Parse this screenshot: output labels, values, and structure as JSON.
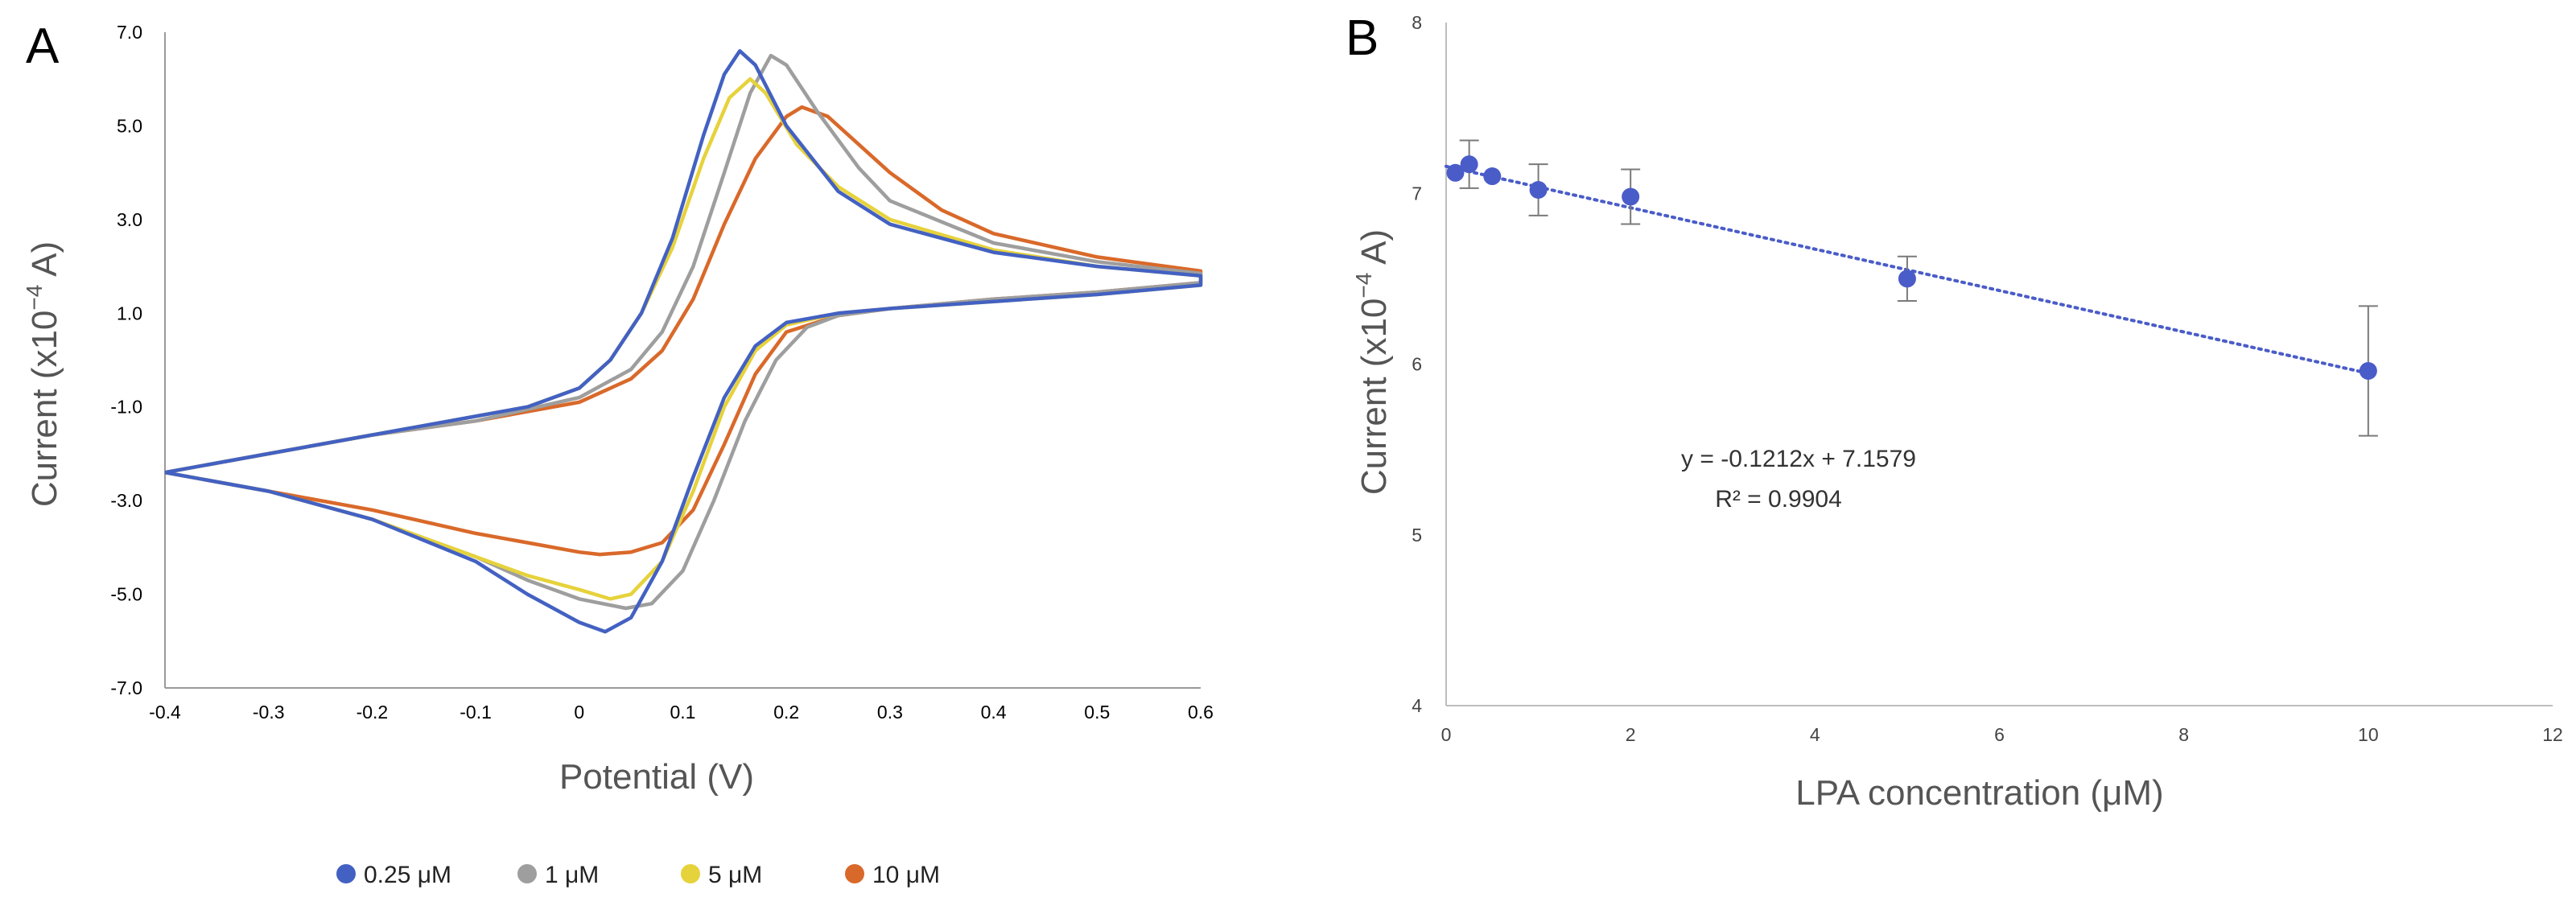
{
  "panels": {
    "A": {
      "letter": "A"
    },
    "B": {
      "letter": "B"
    }
  },
  "chart_data": [
    {
      "type": "line",
      "panel": "A",
      "title": "",
      "xlabel": "Potential (V)",
      "ylabel_main": "Current (x10",
      "ylabel_exp": "−4",
      "ylabel_unit": " A)",
      "xlim": [
        -0.4,
        0.6
      ],
      "ylim": [
        -7.0,
        7.0
      ],
      "x_ticks": [
        "-0.4",
        "-0.3",
        "-0.2",
        "-0.1",
        "0",
        "0.1",
        "0.2",
        "0.3",
        "0.4",
        "0.5",
        "0.6"
      ],
      "y_ticks": [
        "7.0",
        "5.0",
        "3.0",
        "1.0",
        "-1.0",
        "-3.0",
        "-5.0",
        "-7.0"
      ],
      "grid": false,
      "legend_position": "bottom",
      "series": [
        {
          "name": "0.25 μM",
          "color": "#4361c2",
          "forward": [
            [
              -0.4,
              -2.4
            ],
            [
              -0.3,
              -2.0
            ],
            [
              -0.2,
              -1.6
            ],
            [
              -0.1,
              -1.2
            ],
            [
              -0.05,
              -1.0
            ],
            [
              0.0,
              -0.6
            ],
            [
              0.03,
              0.0
            ],
            [
              0.06,
              1.0
            ],
            [
              0.09,
              2.6
            ],
            [
              0.12,
              4.8
            ],
            [
              0.14,
              6.1
            ],
            [
              0.155,
              6.6
            ],
            [
              0.17,
              6.3
            ],
            [
              0.2,
              5.0
            ],
            [
              0.25,
              3.6
            ],
            [
              0.3,
              2.9
            ],
            [
              0.4,
              2.3
            ],
            [
              0.5,
              2.0
            ],
            [
              0.6,
              1.8
            ]
          ],
          "reverse": [
            [
              0.6,
              1.6
            ],
            [
              0.5,
              1.4
            ],
            [
              0.4,
              1.25
            ],
            [
              0.3,
              1.1
            ],
            [
              0.25,
              1.0
            ],
            [
              0.2,
              0.8
            ],
            [
              0.17,
              0.3
            ],
            [
              0.14,
              -0.8
            ],
            [
              0.11,
              -2.5
            ],
            [
              0.08,
              -4.3
            ],
            [
              0.05,
              -5.5
            ],
            [
              0.025,
              -5.8
            ],
            [
              0.0,
              -5.6
            ],
            [
              -0.05,
              -5.0
            ],
            [
              -0.1,
              -4.3
            ],
            [
              -0.2,
              -3.4
            ],
            [
              -0.3,
              -2.8
            ],
            [
              -0.4,
              -2.4
            ]
          ]
        },
        {
          "name": "1 μM",
          "color": "#9e9e9e",
          "forward": [
            [
              -0.4,
              -2.4
            ],
            [
              -0.3,
              -2.0
            ],
            [
              -0.2,
              -1.6
            ],
            [
              -0.1,
              -1.3
            ],
            [
              0.0,
              -0.8
            ],
            [
              0.05,
              -0.2
            ],
            [
              0.08,
              0.6
            ],
            [
              0.11,
              2.0
            ],
            [
              0.14,
              4.0
            ],
            [
              0.165,
              5.7
            ],
            [
              0.185,
              6.5
            ],
            [
              0.2,
              6.3
            ],
            [
              0.23,
              5.3
            ],
            [
              0.27,
              4.1
            ],
            [
              0.3,
              3.4
            ],
            [
              0.4,
              2.5
            ],
            [
              0.5,
              2.1
            ],
            [
              0.6,
              1.85
            ]
          ],
          "reverse": [
            [
              0.6,
              1.65
            ],
            [
              0.5,
              1.45
            ],
            [
              0.4,
              1.3
            ],
            [
              0.3,
              1.1
            ],
            [
              0.25,
              0.95
            ],
            [
              0.22,
              0.7
            ],
            [
              0.19,
              0.0
            ],
            [
              0.16,
              -1.3
            ],
            [
              0.13,
              -3.0
            ],
            [
              0.1,
              -4.5
            ],
            [
              0.07,
              -5.2
            ],
            [
              0.045,
              -5.3
            ],
            [
              0.0,
              -5.1
            ],
            [
              -0.05,
              -4.7
            ],
            [
              -0.1,
              -4.2
            ],
            [
              -0.2,
              -3.4
            ],
            [
              -0.3,
              -2.8
            ],
            [
              -0.4,
              -2.4
            ]
          ]
        },
        {
          "name": "5 μM",
          "color": "#e6d23b",
          "forward": [
            [
              -0.4,
              -2.4
            ],
            [
              -0.3,
              -2.0
            ],
            [
              -0.2,
              -1.6
            ],
            [
              -0.1,
              -1.2
            ],
            [
              -0.05,
              -1.0
            ],
            [
              0.0,
              -0.6
            ],
            [
              0.03,
              0.0
            ],
            [
              0.06,
              1.0
            ],
            [
              0.09,
              2.4
            ],
            [
              0.12,
              4.3
            ],
            [
              0.145,
              5.6
            ],
            [
              0.165,
              6.0
            ],
            [
              0.18,
              5.7
            ],
            [
              0.21,
              4.6
            ],
            [
              0.25,
              3.7
            ],
            [
              0.3,
              3.0
            ],
            [
              0.4,
              2.35
            ],
            [
              0.5,
              2.0
            ],
            [
              0.6,
              1.8
            ]
          ],
          "reverse": [
            [
              0.6,
              1.6
            ],
            [
              0.5,
              1.4
            ],
            [
              0.4,
              1.25
            ],
            [
              0.3,
              1.1
            ],
            [
              0.25,
              1.0
            ],
            [
              0.2,
              0.75
            ],
            [
              0.17,
              0.2
            ],
            [
              0.14,
              -1.0
            ],
            [
              0.11,
              -2.8
            ],
            [
              0.08,
              -4.3
            ],
            [
              0.05,
              -5.0
            ],
            [
              0.03,
              -5.1
            ],
            [
              0.0,
              -4.9
            ],
            [
              -0.05,
              -4.6
            ],
            [
              -0.1,
              -4.2
            ],
            [
              -0.2,
              -3.4
            ],
            [
              -0.3,
              -2.8
            ],
            [
              -0.4,
              -2.4
            ]
          ]
        },
        {
          "name": "10 μM",
          "color": "#d9692a",
          "forward": [
            [
              -0.4,
              -2.4
            ],
            [
              -0.3,
              -2.0
            ],
            [
              -0.2,
              -1.6
            ],
            [
              -0.1,
              -1.3
            ],
            [
              0.0,
              -0.9
            ],
            [
              0.05,
              -0.4
            ],
            [
              0.08,
              0.2
            ],
            [
              0.11,
              1.3
            ],
            [
              0.14,
              2.9
            ],
            [
              0.17,
              4.3
            ],
            [
              0.2,
              5.2
            ],
            [
              0.215,
              5.4
            ],
            [
              0.24,
              5.2
            ],
            [
              0.27,
              4.6
            ],
            [
              0.3,
              4.0
            ],
            [
              0.35,
              3.2
            ],
            [
              0.4,
              2.7
            ],
            [
              0.5,
              2.2
            ],
            [
              0.6,
              1.9
            ]
          ],
          "reverse": [
            [
              0.6,
              1.65
            ],
            [
              0.5,
              1.45
            ],
            [
              0.4,
              1.3
            ],
            [
              0.3,
              1.1
            ],
            [
              0.25,
              0.95
            ],
            [
              0.2,
              0.6
            ],
            [
              0.17,
              -0.3
            ],
            [
              0.14,
              -1.8
            ],
            [
              0.11,
              -3.2
            ],
            [
              0.08,
              -3.9
            ],
            [
              0.05,
              -4.1
            ],
            [
              0.02,
              -4.15
            ],
            [
              0.0,
              -4.1
            ],
            [
              -0.05,
              -3.9
            ],
            [
              -0.1,
              -3.7
            ],
            [
              -0.2,
              -3.2
            ],
            [
              -0.3,
              -2.8
            ],
            [
              -0.4,
              -2.4
            ]
          ]
        }
      ]
    },
    {
      "type": "scatter",
      "panel": "B",
      "title": "",
      "xlabel": "LPA concentration (μM)",
      "ylabel_main": "Current (x10",
      "ylabel_exp": "−4",
      "ylabel_unit": " A)",
      "xlim": [
        0,
        12
      ],
      "ylim": [
        4,
        8
      ],
      "x_ticks": [
        "0",
        "2",
        "4",
        "6",
        "8",
        "10",
        "12"
      ],
      "y_ticks": [
        "8",
        "7",
        "6",
        "5",
        "4"
      ],
      "grid": false,
      "point_color": "#4a5cc8",
      "points": [
        {
          "x": 0.1,
          "y": 7.12,
          "err": 0
        },
        {
          "x": 0.25,
          "y": 7.17,
          "err": 0.14
        },
        {
          "x": 0.5,
          "y": 7.1,
          "err": 0
        },
        {
          "x": 1,
          "y": 7.02,
          "err": 0.15
        },
        {
          "x": 2,
          "y": 6.98,
          "err": 0.16
        },
        {
          "x": 5,
          "y": 6.5,
          "err": 0.13
        },
        {
          "x": 10,
          "y": 5.96,
          "err": 0.38
        }
      ],
      "trendline": {
        "slope": -0.1212,
        "intercept": 7.1579,
        "x_range": [
          0,
          10
        ],
        "style": "dotted"
      },
      "equation": "y = -0.1212x + 7.1579",
      "r_squared": "R² = 0.9904"
    }
  ]
}
